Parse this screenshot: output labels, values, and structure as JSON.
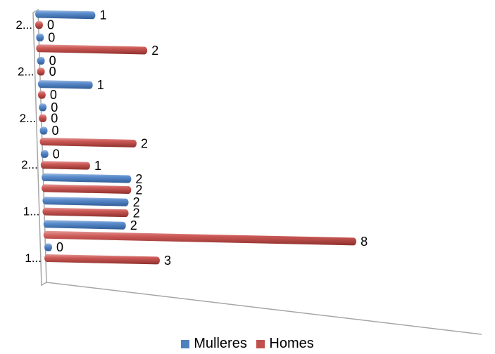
{
  "chart_data": {
    "type": "bar",
    "orientation": "horizontal",
    "style": "3d-cylinder",
    "categories": [
      "1...",
      "",
      "1...",
      "",
      "2...",
      "",
      "2...",
      "",
      "2...",
      "",
      "2..."
    ],
    "series": [
      {
        "name": "Mulleres",
        "color": "#4f81bd",
        "values": [
          0,
          2,
          2,
          2,
          0,
          0,
          0,
          1,
          0,
          0,
          1
        ]
      },
      {
        "name": "Homes",
        "color": "#c0504d",
        "values": [
          3,
          8,
          2,
          2,
          1,
          2,
          0,
          0,
          0,
          2,
          0
        ]
      }
    ],
    "xlim": [
      0,
      8
    ],
    "grid": false,
    "legend_position": "bottom"
  }
}
